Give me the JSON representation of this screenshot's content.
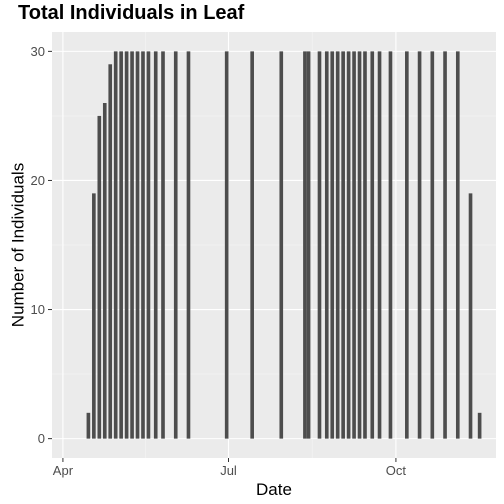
{
  "chart_data": {
    "type": "bar",
    "title": "Total Individuals in Leaf",
    "xlabel": "Date",
    "ylabel": "Number of Individuals",
    "x_is_date": true,
    "xlim": [
      "2020-03-26",
      "2020-11-25"
    ],
    "ylim": [
      -1.5,
      31.5
    ],
    "x_ticks": [
      {
        "date": "2020-04-01",
        "label": "Apr"
      },
      {
        "date": "2020-07-01",
        "label": "Jul"
      },
      {
        "date": "2020-10-01",
        "label": "Oct"
      }
    ],
    "y_ticks": [
      0,
      10,
      20,
      30
    ],
    "grid": true,
    "points": [
      {
        "x": "2020-04-15",
        "y": 2
      },
      {
        "x": "2020-04-18",
        "y": 19
      },
      {
        "x": "2020-04-21",
        "y": 25
      },
      {
        "x": "2020-04-24",
        "y": 26
      },
      {
        "x": "2020-04-27",
        "y": 29
      },
      {
        "x": "2020-04-30",
        "y": 30
      },
      {
        "x": "2020-05-03",
        "y": 30
      },
      {
        "x": "2020-05-06",
        "y": 30
      },
      {
        "x": "2020-05-09",
        "y": 30
      },
      {
        "x": "2020-05-12",
        "y": 30
      },
      {
        "x": "2020-05-15",
        "y": 30
      },
      {
        "x": "2020-05-18",
        "y": 30
      },
      {
        "x": "2020-05-22",
        "y": 30
      },
      {
        "x": "2020-05-26",
        "y": 30
      },
      {
        "x": "2020-06-02",
        "y": 30
      },
      {
        "x": "2020-06-09",
        "y": 30
      },
      {
        "x": "2020-06-30",
        "y": 30
      },
      {
        "x": "2020-07-14",
        "y": 30
      },
      {
        "x": "2020-07-30",
        "y": 30
      },
      {
        "x": "2020-08-12",
        "y": 30
      },
      {
        "x": "2020-08-14",
        "y": 30
      },
      {
        "x": "2020-08-20",
        "y": 30
      },
      {
        "x": "2020-08-24",
        "y": 30
      },
      {
        "x": "2020-08-27",
        "y": 30
      },
      {
        "x": "2020-08-30",
        "y": 30
      },
      {
        "x": "2020-09-02",
        "y": 30
      },
      {
        "x": "2020-09-05",
        "y": 30
      },
      {
        "x": "2020-09-08",
        "y": 30
      },
      {
        "x": "2020-09-11",
        "y": 30
      },
      {
        "x": "2020-09-14",
        "y": 30
      },
      {
        "x": "2020-09-18",
        "y": 30
      },
      {
        "x": "2020-09-22",
        "y": 30
      },
      {
        "x": "2020-09-28",
        "y": 30
      },
      {
        "x": "2020-10-07",
        "y": 30
      },
      {
        "x": "2020-10-14",
        "y": 30
      },
      {
        "x": "2020-10-21",
        "y": 30
      },
      {
        "x": "2020-10-28",
        "y": 30
      },
      {
        "x": "2020-11-04",
        "y": 30
      },
      {
        "x": "2020-11-11",
        "y": 19
      },
      {
        "x": "2020-11-16",
        "y": 2
      }
    ],
    "colors": {
      "bar": "#4d4d4d",
      "panel": "#ebebeb",
      "grid_major": "#ffffff",
      "tick_text": "#4d4d4d"
    }
  }
}
